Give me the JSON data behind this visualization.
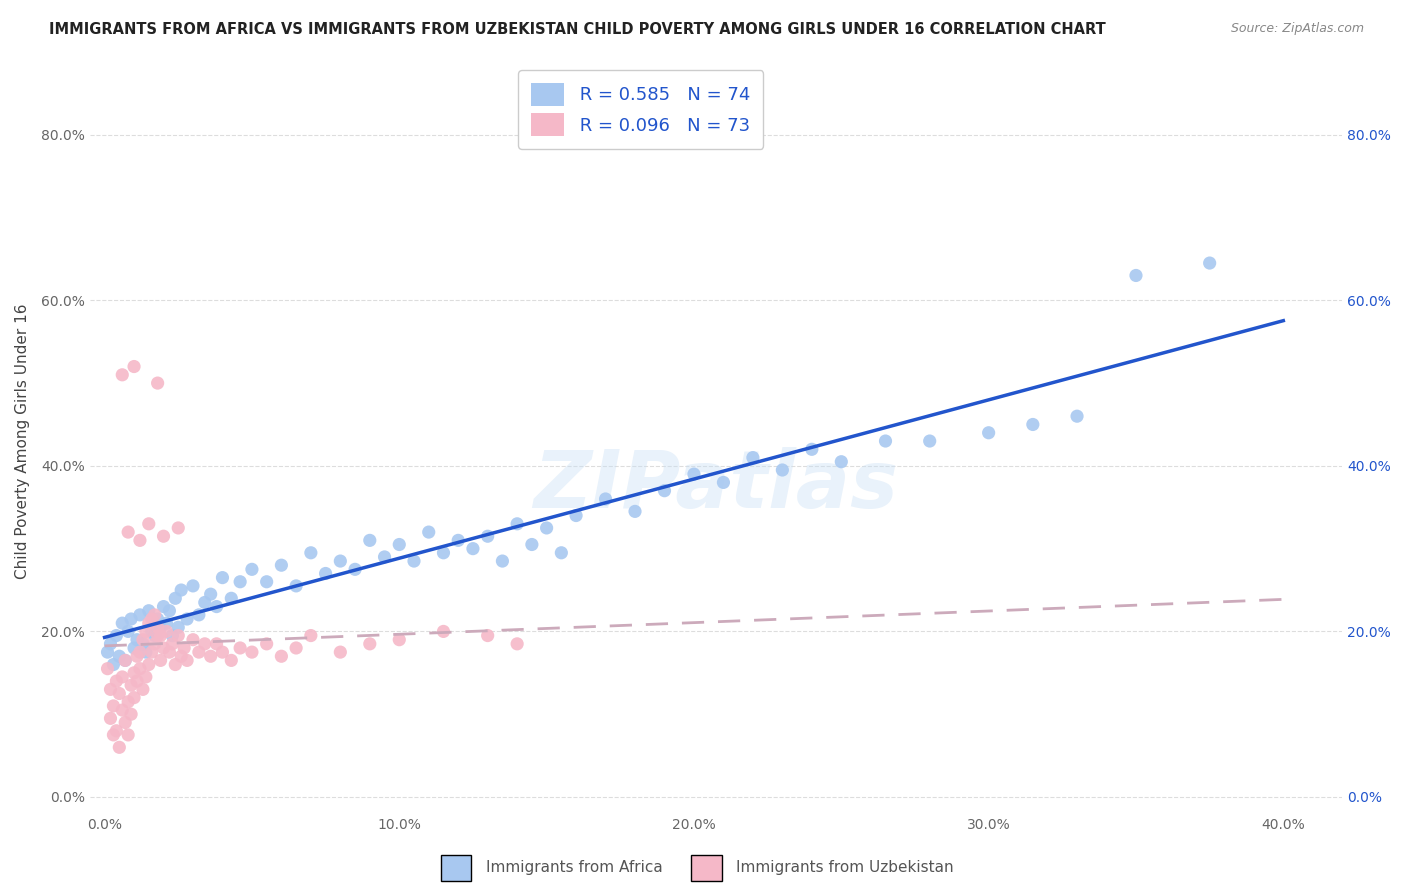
{
  "title": "IMMIGRANTS FROM AFRICA VS IMMIGRANTS FROM UZBEKISTAN CHILD POVERTY AMONG GIRLS UNDER 16 CORRELATION CHART",
  "source": "Source: ZipAtlas.com",
  "xlabel_africa": "Immigrants from Africa",
  "xlabel_uzbekistan": "Immigrants from Uzbekistan",
  "ylabel": "Child Poverty Among Girls Under 16",
  "xlim": [
    -0.005,
    0.42
  ],
  "ylim": [
    -0.02,
    0.88
  ],
  "xticks": [
    0.0,
    0.1,
    0.2,
    0.3,
    0.4
  ],
  "yticks": [
    0.0,
    0.2,
    0.4,
    0.6,
    0.8
  ],
  "africa_R": 0.585,
  "africa_N": 74,
  "uzbekistan_R": 0.096,
  "uzbekistan_N": 73,
  "africa_color": "#a8c8f0",
  "uzbekistan_color": "#f5b8c8",
  "africa_line_color": "#2255cc",
  "uzbekistan_line_color": "#ccaabb",
  "watermark": "ZIPatlas",
  "africa_scatter_x": [
    0.001,
    0.002,
    0.003,
    0.004,
    0.005,
    0.006,
    0.007,
    0.008,
    0.009,
    0.01,
    0.011,
    0.012,
    0.013,
    0.014,
    0.015,
    0.016,
    0.017,
    0.018,
    0.019,
    0.02,
    0.021,
    0.022,
    0.023,
    0.024,
    0.025,
    0.026,
    0.028,
    0.03,
    0.032,
    0.034,
    0.036,
    0.038,
    0.04,
    0.043,
    0.046,
    0.05,
    0.055,
    0.06,
    0.065,
    0.07,
    0.075,
    0.08,
    0.085,
    0.09,
    0.095,
    0.1,
    0.105,
    0.11,
    0.115,
    0.12,
    0.125,
    0.13,
    0.135,
    0.14,
    0.145,
    0.15,
    0.155,
    0.16,
    0.17,
    0.18,
    0.19,
    0.2,
    0.21,
    0.22,
    0.23,
    0.24,
    0.25,
    0.265,
    0.28,
    0.3,
    0.315,
    0.33,
    0.35,
    0.375
  ],
  "africa_scatter_y": [
    0.175,
    0.185,
    0.16,
    0.195,
    0.17,
    0.21,
    0.165,
    0.2,
    0.215,
    0.18,
    0.19,
    0.22,
    0.185,
    0.175,
    0.225,
    0.2,
    0.195,
    0.215,
    0.205,
    0.23,
    0.21,
    0.225,
    0.195,
    0.24,
    0.205,
    0.25,
    0.215,
    0.255,
    0.22,
    0.235,
    0.245,
    0.23,
    0.265,
    0.24,
    0.26,
    0.275,
    0.26,
    0.28,
    0.255,
    0.295,
    0.27,
    0.285,
    0.275,
    0.31,
    0.29,
    0.305,
    0.285,
    0.32,
    0.295,
    0.31,
    0.3,
    0.315,
    0.285,
    0.33,
    0.305,
    0.325,
    0.295,
    0.34,
    0.36,
    0.345,
    0.37,
    0.39,
    0.38,
    0.41,
    0.395,
    0.42,
    0.405,
    0.43,
    0.43,
    0.44,
    0.45,
    0.46,
    0.63,
    0.645
  ],
  "uzbekistan_scatter_x": [
    0.001,
    0.002,
    0.002,
    0.003,
    0.003,
    0.004,
    0.004,
    0.005,
    0.005,
    0.006,
    0.006,
    0.007,
    0.007,
    0.008,
    0.008,
    0.009,
    0.009,
    0.01,
    0.01,
    0.011,
    0.011,
    0.012,
    0.012,
    0.013,
    0.013,
    0.014,
    0.014,
    0.015,
    0.015,
    0.016,
    0.016,
    0.017,
    0.017,
    0.018,
    0.018,
    0.019,
    0.019,
    0.02,
    0.021,
    0.022,
    0.023,
    0.024,
    0.025,
    0.026,
    0.027,
    0.028,
    0.03,
    0.032,
    0.034,
    0.036,
    0.038,
    0.04,
    0.043,
    0.046,
    0.05,
    0.055,
    0.06,
    0.065,
    0.07,
    0.08,
    0.09,
    0.1,
    0.115,
    0.13,
    0.14,
    0.015,
    0.008,
    0.012,
    0.02,
    0.025,
    0.018,
    0.01,
    0.006
  ],
  "uzbekistan_scatter_y": [
    0.155,
    0.13,
    0.095,
    0.075,
    0.11,
    0.14,
    0.08,
    0.125,
    0.06,
    0.145,
    0.105,
    0.09,
    0.165,
    0.115,
    0.075,
    0.135,
    0.1,
    0.15,
    0.12,
    0.17,
    0.14,
    0.155,
    0.175,
    0.13,
    0.19,
    0.145,
    0.2,
    0.16,
    0.21,
    0.175,
    0.215,
    0.185,
    0.22,
    0.195,
    0.205,
    0.165,
    0.195,
    0.18,
    0.2,
    0.175,
    0.185,
    0.16,
    0.195,
    0.17,
    0.18,
    0.165,
    0.19,
    0.175,
    0.185,
    0.17,
    0.185,
    0.175,
    0.165,
    0.18,
    0.175,
    0.185,
    0.17,
    0.18,
    0.195,
    0.175,
    0.185,
    0.19,
    0.2,
    0.195,
    0.185,
    0.33,
    0.32,
    0.31,
    0.315,
    0.325,
    0.5,
    0.52,
    0.51
  ],
  "background_color": "#ffffff",
  "grid_color": "#dddddd",
  "title_fontsize": 10.5,
  "axis_label_fontsize": 11,
  "tick_label_fontsize": 10,
  "legend_fontsize": 13
}
